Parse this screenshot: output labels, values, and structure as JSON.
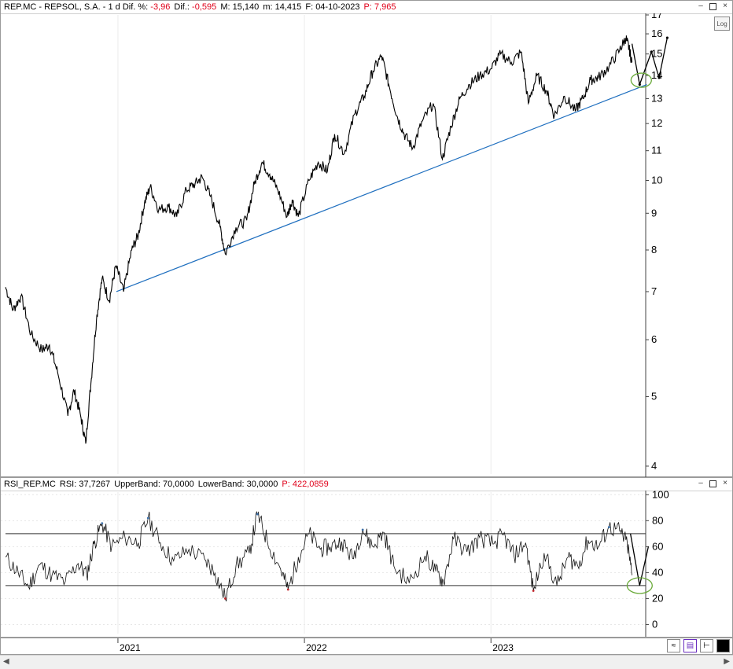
{
  "price_panel": {
    "symbol": "REP.MC - REPSOL, S.A.",
    "interval": "- 1 d",
    "dif_pct_label": "Dif. %:",
    "dif_pct": "-3,96",
    "dif_label": "Dif.:",
    "dif": "-0,595",
    "max_label": "M:",
    "max": "15,140",
    "min_label": "m:",
    "min": "14,415",
    "date_label": "F:",
    "date": "04-10-2023",
    "price_label": "P:",
    "price": "7,965",
    "log_button": "Log",
    "window_buttons": [
      "–",
      "□",
      "×"
    ]
  },
  "rsi_panel": {
    "label": "RSI_REP.MC",
    "rsi_label": "RSI:",
    "rsi": "37,7267",
    "upper_label": "UpperBand:",
    "upper": "70,0000",
    "lower_label": "LowerBand:",
    "lower": "30,0000",
    "p_label": "P:",
    "p": "422,0859",
    "window_buttons": [
      "–",
      "□",
      "×"
    ]
  },
  "x_axis": {
    "labels": [
      "2021",
      "2022",
      "2023"
    ]
  },
  "colors": {
    "price": "#000000",
    "trendline": "#1f6fbf",
    "ellipse": "#6aaa3a",
    "negative_text": "#e0001a",
    "rsi_upper_excursion": "#3a6ea8",
    "rsi_lower_excursion": "#c0262c"
  },
  "chart_data": [
    {
      "type": "line",
      "title": "REP.MC - REPSOL, S.A.",
      "yscale": "log",
      "ylim": [
        3.9,
        17
      ],
      "yticks": [
        4,
        5,
        6,
        7,
        8,
        9,
        10,
        11,
        12,
        13,
        14,
        15,
        16,
        17
      ],
      "x_unit": "date",
      "series": [
        {
          "name": "REP.MC",
          "points": [
            [
              "2020-05-26",
              7.1
            ],
            [
              "2020-06-10",
              6.6
            ],
            [
              "2020-06-25",
              6.9
            ],
            [
              "2020-07-15",
              6.1
            ],
            [
              "2020-08-05",
              5.8
            ],
            [
              "2020-08-20",
              5.9
            ],
            [
              "2020-09-05",
              5.4
            ],
            [
              "2020-09-25",
              4.7
            ],
            [
              "2020-10-07",
              5.1
            ],
            [
              "2020-10-20",
              4.7
            ],
            [
              "2020-10-30",
              4.3
            ],
            [
              "2020-11-10",
              5.3
            ],
            [
              "2020-11-20",
              6.4
            ],
            [
              "2020-12-01",
              7.3
            ],
            [
              "2020-12-15",
              6.8
            ],
            [
              "2020-12-28",
              7.6
            ],
            [
              "2021-01-12",
              7.0
            ],
            [
              "2021-01-28",
              8.0
            ],
            [
              "2021-02-10",
              8.4
            ],
            [
              "2021-02-22",
              9.3
            ],
            [
              "2021-03-05",
              9.8
            ],
            [
              "2021-03-22",
              9.1
            ],
            [
              "2021-04-10",
              9.2
            ],
            [
              "2021-04-26",
              8.9
            ],
            [
              "2021-05-15",
              9.7
            ],
            [
              "2021-06-01",
              9.9
            ],
            [
              "2021-06-15",
              10.1
            ],
            [
              "2021-07-01",
              9.5
            ],
            [
              "2021-07-20",
              8.6
            ],
            [
              "2021-07-30",
              7.9
            ],
            [
              "2021-08-20",
              8.6
            ],
            [
              "2021-09-10",
              8.8
            ],
            [
              "2021-09-25",
              9.9
            ],
            [
              "2021-10-10",
              10.6
            ],
            [
              "2021-10-25",
              10.2
            ],
            [
              "2021-11-10",
              9.7
            ],
            [
              "2021-11-28",
              8.9
            ],
            [
              "2021-12-08",
              9.4
            ],
            [
              "2021-12-20",
              8.9
            ],
            [
              "2022-01-10",
              10.0
            ],
            [
              "2022-01-28",
              10.6
            ],
            [
              "2022-02-15",
              10.3
            ],
            [
              "2022-03-01",
              11.6
            ],
            [
              "2022-03-20",
              10.9
            ],
            [
              "2022-04-10",
              12.4
            ],
            [
              "2022-04-28",
              13.1
            ],
            [
              "2022-05-15",
              14.2
            ],
            [
              "2022-06-01",
              14.9
            ],
            [
              "2022-06-15",
              13.6
            ],
            [
              "2022-07-01",
              12.3
            ],
            [
              "2022-07-15",
              11.6
            ],
            [
              "2022-08-01",
              11.1
            ],
            [
              "2022-08-20",
              12.1
            ],
            [
              "2022-09-10",
              12.8
            ],
            [
              "2022-09-28",
              10.7
            ],
            [
              "2022-10-15",
              11.9
            ],
            [
              "2022-11-01",
              13.0
            ],
            [
              "2022-11-20",
              13.6
            ],
            [
              "2022-12-10",
              14.0
            ],
            [
              "2023-01-01",
              14.3
            ],
            [
              "2023-01-20",
              15.0
            ],
            [
              "2023-02-10",
              14.6
            ],
            [
              "2023-03-01",
              15.1
            ],
            [
              "2023-03-15",
              12.8
            ],
            [
              "2023-04-01",
              14.0
            ],
            [
              "2023-04-20",
              13.3
            ],
            [
              "2023-05-05",
              12.3
            ],
            [
              "2023-05-25",
              13.1
            ],
            [
              "2023-06-15",
              12.5
            ],
            [
              "2023-06-30",
              13.0
            ],
            [
              "2023-07-15",
              13.8
            ],
            [
              "2023-07-30",
              13.9
            ],
            [
              "2023-08-20",
              14.4
            ],
            [
              "2023-09-10",
              15.2
            ],
            [
              "2023-09-22",
              15.8
            ],
            [
              "2023-09-28",
              15.3
            ],
            [
              "2023-10-04",
              14.6
            ]
          ]
        }
      ],
      "trendline": {
        "from": [
          "2020-12-29",
          7.0
        ],
        "to": [
          "2023-11-02",
          13.6
        ]
      },
      "projection": [
        [
          "2023-10-04",
          15.5
        ],
        [
          "2023-10-19",
          13.6
        ],
        [
          "2023-11-11",
          15.1
        ],
        [
          "2023-11-26",
          13.9
        ],
        [
          "2023-12-12",
          15.8
        ]
      ],
      "ellipse_center": [
        "2023-10-19",
        13.65
      ]
    },
    {
      "type": "line",
      "title": "RSI_REP.MC",
      "ylim": [
        -7,
        102
      ],
      "yticks": [
        0,
        20,
        40,
        60,
        80,
        100
      ],
      "x_unit": "date",
      "bands": [
        30,
        70
      ],
      "series": [
        {
          "name": "RSI",
          "points": [
            [
              "2020-05-26",
              52
            ],
            [
              "2020-06-20",
              40
            ],
            [
              "2020-07-10",
              29
            ],
            [
              "2020-08-01",
              46
            ],
            [
              "2020-08-25",
              38
            ],
            [
              "2020-09-20",
              33
            ],
            [
              "2020-10-15",
              47
            ],
            [
              "2020-11-01",
              38
            ],
            [
              "2020-11-15",
              62
            ],
            [
              "2020-12-01",
              78
            ],
            [
              "2020-12-20",
              60
            ],
            [
              "2021-01-15",
              67
            ],
            [
              "2021-02-10",
              63
            ],
            [
              "2021-03-01",
              82
            ],
            [
              "2021-03-25",
              63
            ],
            [
              "2021-04-20",
              49
            ],
            [
              "2021-05-20",
              58
            ],
            [
              "2021-06-20",
              50
            ],
            [
              "2021-07-10",
              40
            ],
            [
              "2021-07-30",
              20
            ],
            [
              "2021-08-20",
              45
            ],
            [
              "2021-09-15",
              55
            ],
            [
              "2021-10-01",
              85
            ],
            [
              "2021-10-20",
              65
            ],
            [
              "2021-11-15",
              43
            ],
            [
              "2021-11-30",
              27
            ],
            [
              "2021-12-20",
              52
            ],
            [
              "2022-01-10",
              70
            ],
            [
              "2022-02-01",
              58
            ],
            [
              "2022-02-20",
              60
            ],
            [
              "2022-03-15",
              64
            ],
            [
              "2022-04-05",
              51
            ],
            [
              "2022-04-25",
              73
            ],
            [
              "2022-05-15",
              60
            ],
            [
              "2022-06-05",
              71
            ],
            [
              "2022-06-25",
              45
            ],
            [
              "2022-07-25",
              32
            ],
            [
              "2022-08-25",
              53
            ],
            [
              "2022-09-15",
              41
            ],
            [
              "2022-09-30",
              33
            ],
            [
              "2022-10-20",
              66
            ],
            [
              "2022-11-15",
              56
            ],
            [
              "2022-12-10",
              67
            ],
            [
              "2023-01-05",
              62
            ],
            [
              "2023-01-25",
              69
            ],
            [
              "2023-02-15",
              53
            ],
            [
              "2023-03-10",
              63
            ],
            [
              "2023-03-25",
              26
            ],
            [
              "2023-04-15",
              55
            ],
            [
              "2023-05-10",
              30
            ],
            [
              "2023-06-01",
              52
            ],
            [
              "2023-06-20",
              45
            ],
            [
              "2023-07-10",
              65
            ],
            [
              "2023-07-30",
              60
            ],
            [
              "2023-08-20",
              75
            ],
            [
              "2023-09-10",
              72
            ],
            [
              "2023-09-25",
              62
            ],
            [
              "2023-10-04",
              38
            ]
          ]
        }
      ],
      "projection": [
        [
          "2023-10-01",
          70
        ],
        [
          "2023-10-19",
          30
        ],
        [
          "2023-11-05",
          60
        ]
      ],
      "ellipse_center": [
        "2023-10-19",
        30
      ]
    }
  ]
}
